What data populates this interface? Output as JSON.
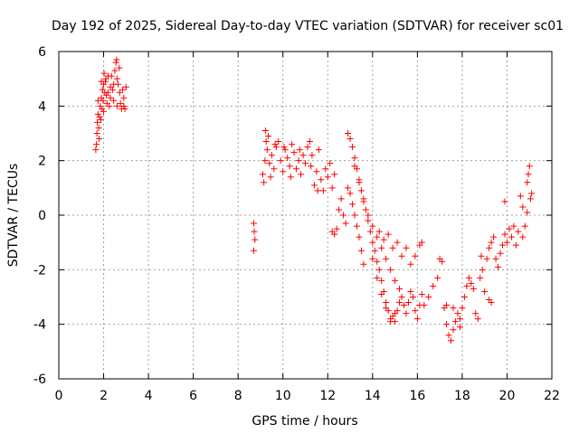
{
  "chart_data": {
    "type": "scatter",
    "title": "Day 192 of 2025, Sidereal Day-to-day VTEC variation (SDTVAR) for receiver sc01",
    "xlabel": "GPS time / hours",
    "ylabel": "SDTVAR / TECUs",
    "xlim": [
      0,
      22
    ],
    "ylim": [
      -6,
      6
    ],
    "xticks": [
      "0",
      "2",
      "4",
      "6",
      "8",
      "10",
      "12",
      "14",
      "16",
      "18",
      "20",
      "22"
    ],
    "yticks": [
      "-6",
      "-4",
      "-2",
      "0",
      "2",
      "4",
      "6"
    ],
    "grid": true,
    "marker": "plus",
    "color": "#ff0000",
    "series": [
      {
        "points": [
          [
            1.65,
            2.4
          ],
          [
            1.68,
            2.6
          ],
          [
            1.7,
            3.0
          ],
          [
            1.72,
            3.4
          ],
          [
            1.75,
            3.7
          ],
          [
            1.78,
            3.2
          ],
          [
            1.8,
            2.8
          ],
          [
            1.82,
            3.6
          ],
          [
            1.85,
            4.0
          ],
          [
            1.88,
            3.5
          ],
          [
            1.9,
            4.3
          ],
          [
            1.93,
            3.9
          ],
          [
            1.95,
            4.6
          ],
          [
            1.98,
            4.2
          ],
          [
            2.0,
            4.8
          ],
          [
            2.02,
            5.2
          ],
          [
            2.05,
            4.5
          ],
          [
            2.08,
            4.9
          ],
          [
            2.1,
            5.0
          ],
          [
            2.12,
            4.4
          ],
          [
            2.15,
            4.1
          ],
          [
            2.2,
            4.5
          ],
          [
            2.25,
            4.0
          ],
          [
            2.3,
            4.7
          ],
          [
            2.35,
            5.1
          ],
          [
            2.4,
            4.6
          ],
          [
            2.45,
            4.2
          ],
          [
            2.5,
            5.3
          ],
          [
            2.55,
            5.6
          ],
          [
            2.58,
            5.7
          ],
          [
            2.6,
            5.0
          ],
          [
            2.65,
            4.8
          ],
          [
            2.7,
            5.4
          ],
          [
            2.72,
            4.5
          ],
          [
            2.75,
            4.1
          ],
          [
            2.8,
            3.9
          ],
          [
            2.85,
            4.6
          ],
          [
            2.9,
            4.3
          ],
          [
            2.95,
            3.9
          ],
          [
            3.0,
            4.7
          ],
          [
            1.75,
            4.2
          ],
          [
            2.0,
            3.8
          ],
          [
            2.3,
            4.3
          ],
          [
            2.6,
            4.0
          ],
          [
            2.9,
            4.0
          ],
          [
            2.45,
            4.8
          ],
          [
            2.2,
            5.1
          ],
          [
            1.9,
            4.9
          ],
          [
            8.7,
            -0.3
          ],
          [
            8.72,
            -0.6
          ],
          [
            8.75,
            -0.9
          ],
          [
            8.7,
            -1.3
          ],
          [
            9.1,
            1.5
          ],
          [
            9.15,
            1.2
          ],
          [
            9.2,
            2.0
          ],
          [
            9.22,
            3.1
          ],
          [
            9.25,
            2.7
          ],
          [
            9.3,
            2.4
          ],
          [
            9.35,
            2.9
          ],
          [
            9.4,
            1.9
          ],
          [
            9.5,
            2.2
          ],
          [
            9.6,
            1.7
          ],
          [
            9.7,
            2.5
          ],
          [
            9.8,
            2.7
          ],
          [
            9.9,
            2.0
          ],
          [
            10.0,
            1.6
          ],
          [
            10.1,
            2.4
          ],
          [
            10.2,
            2.1
          ],
          [
            10.3,
            1.8
          ],
          [
            10.4,
            2.6
          ],
          [
            10.5,
            2.3
          ],
          [
            10.6,
            1.7
          ],
          [
            10.7,
            2.0
          ],
          [
            10.8,
            1.5
          ],
          [
            10.9,
            2.2
          ],
          [
            11.0,
            1.9
          ],
          [
            11.1,
            2.5
          ],
          [
            11.2,
            2.7
          ],
          [
            11.3,
            2.2
          ],
          [
            11.4,
            1.1
          ],
          [
            11.5,
            1.6
          ],
          [
            11.6,
            2.4
          ],
          [
            11.7,
            1.3
          ],
          [
            11.8,
            0.9
          ],
          [
            11.9,
            1.7
          ],
          [
            12.0,
            1.4
          ],
          [
            9.45,
            1.4
          ],
          [
            9.65,
            2.6
          ],
          [
            10.05,
            2.5
          ],
          [
            10.35,
            1.4
          ],
          [
            10.75,
            2.4
          ],
          [
            11.25,
            1.8
          ],
          [
            11.55,
            0.9
          ],
          [
            12.1,
            1.9
          ],
          [
            12.2,
            1.0
          ],
          [
            12.3,
            1.5
          ],
          [
            12.2,
            -0.6
          ],
          [
            12.3,
            -0.7
          ],
          [
            12.4,
            -0.5
          ],
          [
            12.5,
            0.2
          ],
          [
            12.6,
            0.6
          ],
          [
            12.7,
            0.0
          ],
          [
            12.8,
            -0.3
          ],
          [
            12.9,
            3.0
          ],
          [
            13.0,
            2.8
          ],
          [
            13.1,
            2.5
          ],
          [
            13.2,
            2.1
          ],
          [
            13.3,
            1.7
          ],
          [
            13.4,
            1.3
          ],
          [
            13.5,
            0.9
          ],
          [
            13.6,
            0.5
          ],
          [
            13.7,
            0.2
          ],
          [
            13.8,
            -0.2
          ],
          [
            13.9,
            -0.6
          ],
          [
            14.0,
            -1.0
          ],
          [
            14.1,
            -1.3
          ],
          [
            14.2,
            -1.7
          ],
          [
            14.3,
            -2.0
          ],
          [
            14.4,
            -2.4
          ],
          [
            14.5,
            -2.8
          ],
          [
            14.6,
            -3.2
          ],
          [
            14.7,
            -3.5
          ],
          [
            14.8,
            -3.8
          ],
          [
            14.9,
            -3.7
          ],
          [
            15.0,
            -3.9
          ],
          [
            15.1,
            -3.5
          ],
          [
            15.2,
            -3.2
          ],
          [
            15.3,
            -3.0
          ],
          [
            15.4,
            -3.3
          ],
          [
            15.5,
            -3.6
          ],
          [
            15.6,
            -3.2
          ],
          [
            15.7,
            -2.8
          ],
          [
            15.8,
            -3.0
          ],
          [
            15.9,
            -3.5
          ],
          [
            16.0,
            -3.8
          ],
          [
            16.1,
            -3.3
          ],
          [
            16.2,
            -2.9
          ],
          [
            12.9,
            1.0
          ],
          [
            13.0,
            0.8
          ],
          [
            13.1,
            0.4
          ],
          [
            13.2,
            0.0
          ],
          [
            13.3,
            -0.4
          ],
          [
            13.4,
            -0.8
          ],
          [
            13.5,
            -1.3
          ],
          [
            13.6,
            -1.8
          ],
          [
            13.2,
            1.8
          ],
          [
            13.4,
            1.2
          ],
          [
            13.6,
            0.6
          ],
          [
            13.8,
            0.0
          ],
          [
            14.0,
            -0.4
          ],
          [
            14.2,
            -0.8
          ],
          [
            14.4,
            -1.2
          ],
          [
            14.6,
            -1.6
          ],
          [
            14.8,
            -2.0
          ],
          [
            15.0,
            -2.4
          ],
          [
            15.2,
            -2.7
          ],
          [
            14.3,
            -0.6
          ],
          [
            14.5,
            -0.9
          ],
          [
            14.7,
            -0.7
          ],
          [
            14.9,
            -1.2
          ],
          [
            15.1,
            -1.0
          ],
          [
            15.3,
            -1.5
          ],
          [
            15.5,
            -1.2
          ],
          [
            15.7,
            -1.8
          ],
          [
            15.9,
            -1.5
          ],
          [
            16.1,
            -1.1
          ],
          [
            16.2,
            -1.0
          ],
          [
            14.0,
            -1.6
          ],
          [
            14.2,
            -2.3
          ],
          [
            14.4,
            -2.9
          ],
          [
            14.6,
            -3.4
          ],
          [
            14.8,
            -3.9
          ],
          [
            15.0,
            -3.6
          ],
          [
            16.3,
            -3.3
          ],
          [
            16.5,
            -3.0
          ],
          [
            16.7,
            -2.6
          ],
          [
            16.9,
            -2.3
          ],
          [
            17.0,
            -1.6
          ],
          [
            17.1,
            -1.7
          ],
          [
            17.2,
            -3.4
          ],
          [
            17.3,
            -4.0
          ],
          [
            17.4,
            -4.4
          ],
          [
            17.5,
            -4.6
          ],
          [
            17.6,
            -4.2
          ],
          [
            17.7,
            -3.9
          ],
          [
            17.8,
            -3.6
          ],
          [
            17.9,
            -3.8
          ],
          [
            18.0,
            -3.4
          ],
          [
            18.1,
            -3.0
          ],
          [
            18.2,
            -2.6
          ],
          [
            18.3,
            -2.3
          ],
          [
            18.4,
            -2.5
          ],
          [
            18.5,
            -2.7
          ],
          [
            17.3,
            -3.3
          ],
          [
            17.6,
            -3.4
          ],
          [
            17.9,
            -4.1
          ],
          [
            18.6,
            -3.6
          ],
          [
            18.7,
            -3.8
          ],
          [
            18.8,
            -2.3
          ],
          [
            18.85,
            -1.5
          ],
          [
            18.9,
            -2.0
          ],
          [
            19.0,
            -2.8
          ],
          [
            19.2,
            -3.1
          ],
          [
            19.3,
            -3.2
          ],
          [
            19.1,
            -1.6
          ],
          [
            19.2,
            -1.2
          ],
          [
            19.3,
            -1.0
          ],
          [
            19.4,
            -0.8
          ],
          [
            19.5,
            -1.6
          ],
          [
            19.6,
            -1.9
          ],
          [
            19.7,
            -1.4
          ],
          [
            19.8,
            -1.1
          ],
          [
            19.9,
            -0.7
          ],
          [
            19.9,
            0.5
          ],
          [
            20.0,
            -1.0
          ],
          [
            20.1,
            -0.5
          ],
          [
            20.2,
            -0.8
          ],
          [
            20.3,
            -0.4
          ],
          [
            20.4,
            -1.1
          ],
          [
            20.5,
            -0.6
          ],
          [
            20.6,
            0.7
          ],
          [
            20.7,
            0.3
          ],
          [
            20.8,
            -0.4
          ],
          [
            20.9,
            1.2
          ],
          [
            20.95,
            1.5
          ],
          [
            21.0,
            1.8
          ],
          [
            21.05,
            0.6
          ],
          [
            21.1,
            0.8
          ],
          [
            20.7,
            -0.8
          ],
          [
            20.9,
            0.1
          ]
        ]
      }
    ]
  }
}
